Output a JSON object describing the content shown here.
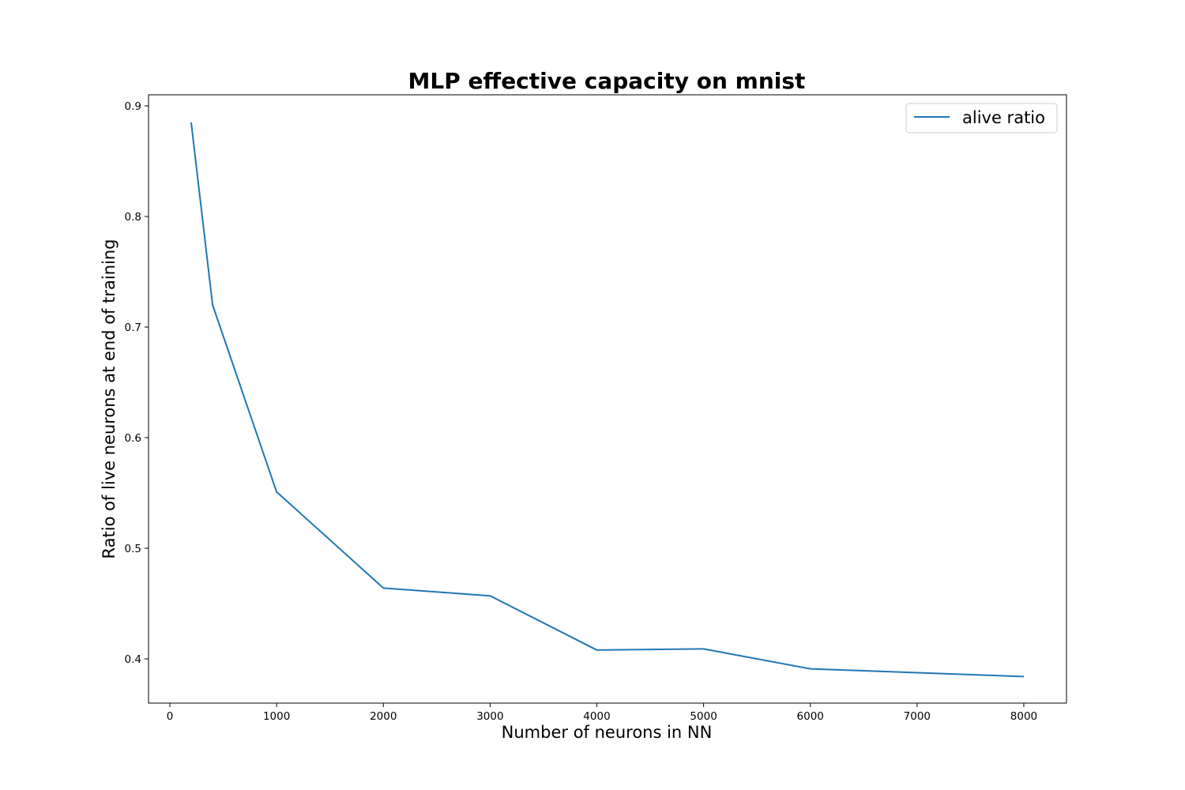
{
  "chart_data": {
    "type": "line",
    "title": "MLP effective capacity on mnist",
    "xlabel": "Number of neurons in NN",
    "ylabel": "Ratio of live neurons at end of training",
    "xlim": [
      -200,
      8400
    ],
    "ylim": [
      0.36,
      0.91
    ],
    "xticks": [
      0,
      1000,
      2000,
      3000,
      4000,
      5000,
      6000,
      7000,
      8000
    ],
    "yticks": [
      0.4,
      0.5,
      0.6,
      0.7,
      0.8,
      0.9
    ],
    "grid": false,
    "legend": "top-right",
    "series": [
      {
        "name": "alive ratio",
        "color": "#1f77b4",
        "x": [
          200,
          400,
          1000,
          2000,
          3000,
          4000,
          5000,
          6000,
          8000
        ],
        "y": [
          0.885,
          0.72,
          0.551,
          0.464,
          0.457,
          0.408,
          0.409,
          0.391,
          0.384
        ]
      }
    ]
  }
}
